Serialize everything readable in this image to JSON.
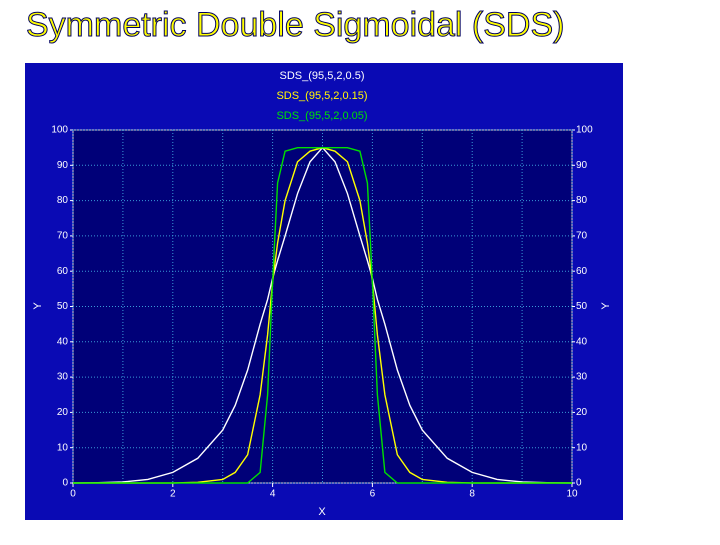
{
  "title": "Symmetric Double Sigmoidal (SDS)",
  "chart_data": {
    "type": "line",
    "x_label": "X",
    "y_label": "Y",
    "x": [
      0,
      0.5,
      1,
      1.5,
      2,
      2.5,
      3,
      3.25,
      3.5,
      3.75,
      3.9,
      4,
      4.1,
      4.25,
      4.5,
      4.75,
      5,
      5.25,
      5.5,
      5.75,
      5.9,
      6,
      6.1,
      6.25,
      6.5,
      6.75,
      7,
      7.5,
      8,
      8.5,
      9,
      9.5,
      10
    ],
    "series": [
      {
        "name": "SDS_(95,5,2,0.5)",
        "color": "#ffffff",
        "values": [
          0,
          0.1,
          0.3,
          1,
          3,
          7,
          15,
          22,
          32,
          45,
          52,
          58,
          63,
          70,
          82,
          91,
          95,
          91,
          82,
          70,
          63,
          58,
          52,
          45,
          32,
          22,
          15,
          7,
          3,
          1,
          0.3,
          0.1,
          0
        ]
      },
      {
        "name": "SDS_(95,5,2,0.15)",
        "color": "#ffff00",
        "values": [
          0,
          0,
          0,
          0,
          0,
          0.2,
          1,
          3,
          8,
          25,
          42,
          57,
          68,
          80,
          91,
          94,
          95,
          94,
          91,
          80,
          68,
          57,
          42,
          25,
          8,
          3,
          1,
          0.2,
          0,
          0,
          0,
          0,
          0
        ]
      },
      {
        "name": "SDS_(95,5,2,0.05)",
        "color": "#00e000",
        "values": [
          0,
          0,
          0,
          0,
          0,
          0,
          0,
          0,
          0,
          3,
          25,
          57,
          85,
          94,
          95,
          95,
          95,
          95,
          95,
          94,
          85,
          57,
          25,
          3,
          0,
          0,
          0,
          0,
          0,
          0,
          0,
          0,
          0
        ]
      }
    ],
    "xlim": [
      0,
      10
    ],
    "xticks": [
      0,
      2,
      4,
      6,
      8,
      10
    ],
    "xminor": [
      1,
      3,
      5,
      7,
      9
    ],
    "ylim": [
      0,
      100
    ],
    "yticks": [
      0,
      10,
      20,
      30,
      40,
      50,
      60,
      70,
      80,
      90,
      100
    ],
    "grid": true
  }
}
